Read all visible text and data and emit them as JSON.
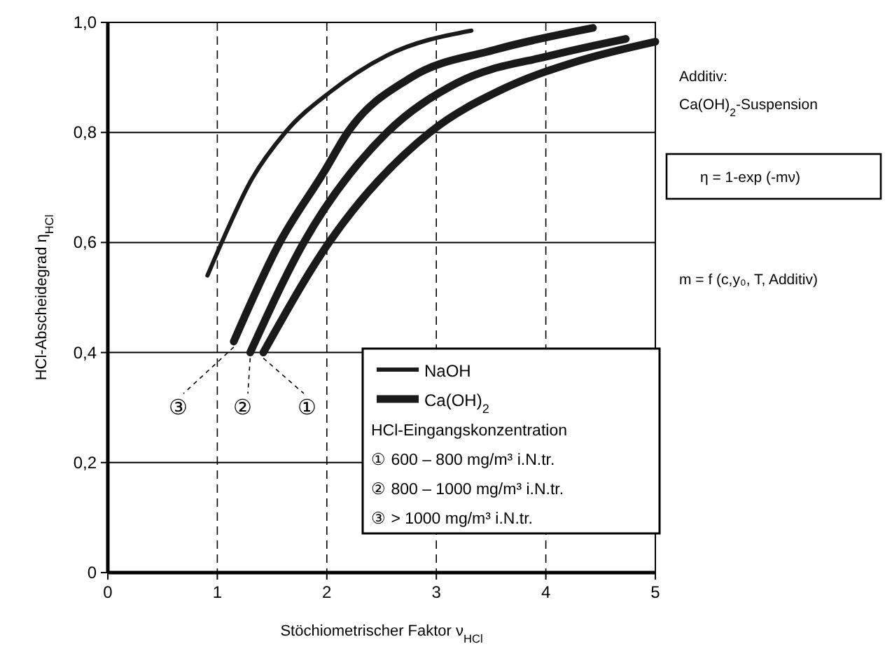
{
  "chart_data": {
    "type": "line",
    "xlabel": "Stöchiometrischer Faktor ν$_{HCl}$",
    "ylabel": "HCl-Abscheidegrad η$_{HCl}$",
    "xlim": [
      0,
      5
    ],
    "xticks": [
      0,
      1,
      2,
      3,
      4,
      5
    ],
    "ylim": [
      0,
      1
    ],
    "yticks": [
      0,
      {
        "value": 0.2,
        "label": "0,2"
      },
      {
        "value": 0.4,
        "label": "0,4"
      },
      {
        "value": 0.6,
        "label": "0,6"
      },
      {
        "value": 0.8,
        "label": "0,8"
      },
      {
        "value": 1,
        "label": "1,0"
      }
    ],
    "grid": true,
    "legend": "bottom right",
    "line_style": "solid",
    "series": [
      {
        "name": "NaOH",
        "color": "#1a1a1a",
        "x": [
          0.91,
          1.04,
          1.3,
          1.62,
          2.04,
          2.55,
          3.32
        ],
        "values": [
          0.54,
          0.6,
          0.71,
          0.8,
          0.875,
          0.94,
          0.985
        ]
      },
      {
        "name": "Ca(OH)$_{2}$",
        "color": "#1a1a1a",
        "x": [
          1.15,
          1.57,
          1.98,
          2.19,
          2.77,
          3.53,
          4.43
        ],
        "values": [
          0.42,
          0.6,
          0.73,
          0.8,
          0.9,
          0.95,
          0.99
        ]
      },
      {
        "color": "#1a1a1a",
        "x": [
          1.3,
          1.79,
          2.55,
          3.19,
          4.05,
          4.73
        ],
        "values": [
          0.4,
          0.6,
          0.8,
          0.89,
          0.94,
          0.97
        ]
      },
      {
        "color": "#1a1a1a",
        "x": [
          1.42,
          2.02,
          2.94,
          3.62,
          4.3,
          5.0
        ],
        "values": [
          0.4,
          0.6,
          0.8,
          0.88,
          0.93,
          0.965
        ]
      }
    ],
    "annotations": [
      {
        "text": "③",
        "x": 1.15,
        "y": 0.42
      },
      {
        "text": "②",
        "x": 1.3,
        "y": 0.4
      },
      {
        "text": "①",
        "x": 1.42,
        "y": 0.4
      },
      "HCl-Eingangskonzentration",
      "① 600 – 800 mg/m³ i.N.tr.",
      "② 800 – 1000 mg/m³ i.N.tr.",
      "③      > 1000 mg/m³ i.N.tr.",
      "Additiv:",
      "Ca(OH)$_{2}$-Suspension",
      "η = 1-exp (-mν)",
      "m = f (c,y₀, T, Additiv)"
    ]
  }
}
